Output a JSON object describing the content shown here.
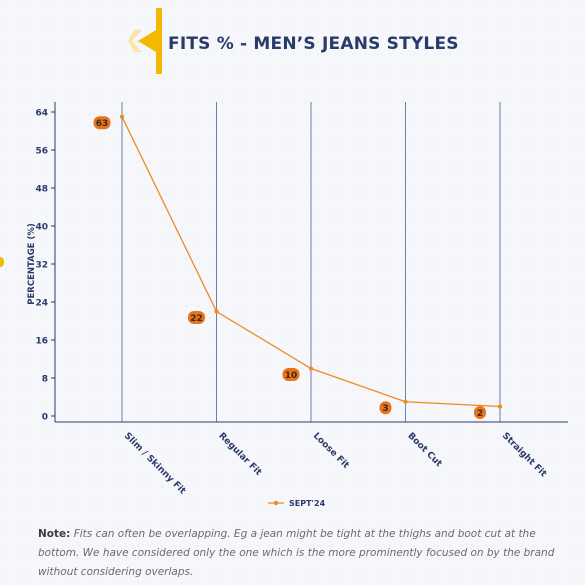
{
  "title": "FITS % - MEN’S JEANS STYLES",
  "note": {
    "label": "Note:",
    "text": "Fits can often be overlapping. Eg a jean might be tight at the thighs and boot cut at the bottom. We have considered only the one which is the more prominently focused on by the brand without considering overlaps."
  },
  "colors": {
    "series": "#f08a24",
    "label_bg": "#e8731a",
    "axis": "#2a3a6a",
    "gridline": "#3c4f86",
    "logo": "#f5b800"
  },
  "chart_data": {
    "type": "line",
    "categories": [
      "Slim / Skinny Fit",
      "Regular Fit",
      "Loose Fit",
      "Boot Cut",
      "Straight Fit"
    ],
    "series": [
      {
        "name": "SEPT'24",
        "values": [
          63,
          22,
          10,
          3,
          2
        ]
      }
    ],
    "ylabel": "PERCENTAGE (%)",
    "xlabel": "",
    "ylim": [
      0,
      64
    ],
    "yticks": [
      0,
      8,
      16,
      24,
      32,
      40,
      48,
      56,
      64
    ],
    "grid": "vertical",
    "legend": "bottom-center"
  }
}
